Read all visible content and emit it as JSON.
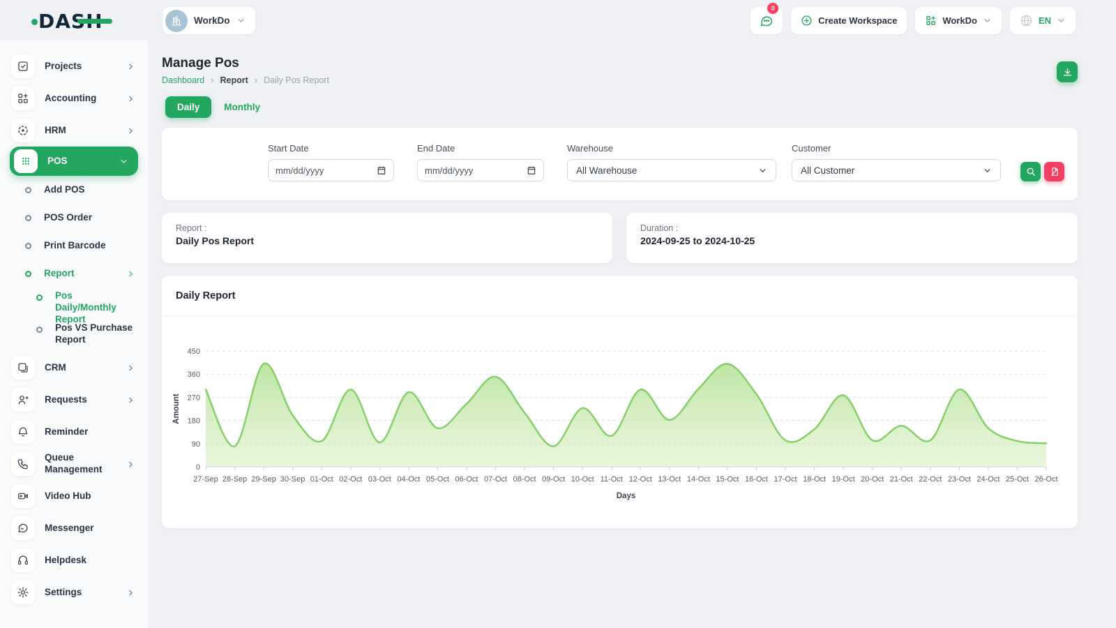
{
  "brand": {
    "logo_text": "DASH"
  },
  "header": {
    "workspace_name": "WorkDo",
    "notification_count": "0",
    "create_workspace_label": "Create Workspace",
    "workdo_menu_label": "WorkDo",
    "language": "EN"
  },
  "sidebar": {
    "items": [
      {
        "label": "Projects",
        "icon": "check-square-icon",
        "chevron": "right",
        "level": 0
      },
      {
        "label": "Accounting",
        "icon": "grid-plus-icon",
        "chevron": "right",
        "level": 0
      },
      {
        "label": "HRM",
        "icon": "target-icon",
        "chevron": "right",
        "level": 0
      },
      {
        "label": "POS",
        "icon": "dots-grid-icon",
        "chevron": "down",
        "level": 0,
        "active": true
      },
      {
        "label": "Add POS",
        "level": 1
      },
      {
        "label": "POS Order",
        "level": 1
      },
      {
        "label": "Print Barcode",
        "level": 1
      },
      {
        "label": "Report",
        "level": 1,
        "chevron": "right",
        "green": true
      },
      {
        "label": "Pos Daily/Monthly Report",
        "level": 2,
        "green": true
      },
      {
        "label": "Pos VS Purchase Report",
        "level": 2
      },
      {
        "label": "CRM",
        "icon": "squares-icon",
        "chevron": "right",
        "level": 0
      },
      {
        "label": "Requests",
        "icon": "user-plus-icon",
        "chevron": "right",
        "level": 0
      },
      {
        "label": "Reminder",
        "icon": "bell-icon",
        "level": 0
      },
      {
        "label": "Queue Management",
        "icon": "phone-icon",
        "chevron": "right",
        "level": 0
      },
      {
        "label": "Video Hub",
        "icon": "video-icon",
        "level": 0
      },
      {
        "label": "Messenger",
        "icon": "message-icon",
        "level": 0
      },
      {
        "label": "Helpdesk",
        "icon": "headset-icon",
        "level": 0
      },
      {
        "label": "Settings",
        "icon": "gear-icon",
        "chevron": "right",
        "level": 0
      }
    ]
  },
  "page": {
    "title": "Manage Pos",
    "breadcrumb": [
      "Dashboard",
      "Report",
      "Daily Pos Report"
    ],
    "tabs": {
      "daily": "Daily",
      "monthly": "Monthly"
    }
  },
  "filters": {
    "start_date": {
      "label": "Start Date",
      "placeholder": "mm/dd/yyyy"
    },
    "end_date": {
      "label": "End Date",
      "placeholder": "mm/dd/yyyy"
    },
    "warehouse": {
      "label": "Warehouse",
      "value": "All Warehouse"
    },
    "customer": {
      "label": "Customer",
      "value": "All Customer"
    }
  },
  "summary": {
    "report_label": "Report :",
    "report_value": "Daily Pos Report",
    "duration_label": "Duration :",
    "duration_value": "2024-09-25 to 2024-10-25"
  },
  "chart_card": {
    "title": "Daily Report"
  },
  "chart_data": {
    "type": "area",
    "title": "Daily Report",
    "categories": [
      "27-Sep",
      "28-Sep",
      "29-Sep",
      "30-Sep",
      "01-Oct",
      "02-Oct",
      "03-Oct",
      "04-Oct",
      "05-Oct",
      "06-Oct",
      "07-Oct",
      "08-Oct",
      "09-Oct",
      "10-Oct",
      "11-Oct",
      "12-Oct",
      "13-Oct",
      "14-Oct",
      "15-Oct",
      "16-Oct",
      "17-Oct",
      "18-Oct",
      "19-Oct",
      "20-Oct",
      "21-Oct",
      "22-Oct",
      "23-Oct",
      "24-Oct",
      "25-Oct",
      "26-Oct"
    ],
    "values": [
      300,
      80,
      400,
      200,
      100,
      300,
      95,
      290,
      150,
      245,
      350,
      210,
      80,
      228,
      120,
      300,
      182,
      303,
      400,
      282,
      103,
      146,
      278,
      103,
      159,
      103,
      300,
      150,
      100,
      91
    ],
    "xlabel": "Days",
    "ylabel": "Amount",
    "ylim": [
      0,
      450
    ],
    "yticks": [
      0,
      90,
      180,
      270,
      360,
      450
    ],
    "grid": true,
    "legend": "none"
  },
  "colors": {
    "primary_green": "#23a760",
    "chart_line": "#85cf68",
    "chart_fill_top": "#a9dd85",
    "reset_rose": "#f43f64",
    "badge_red": "#ff3d60"
  }
}
